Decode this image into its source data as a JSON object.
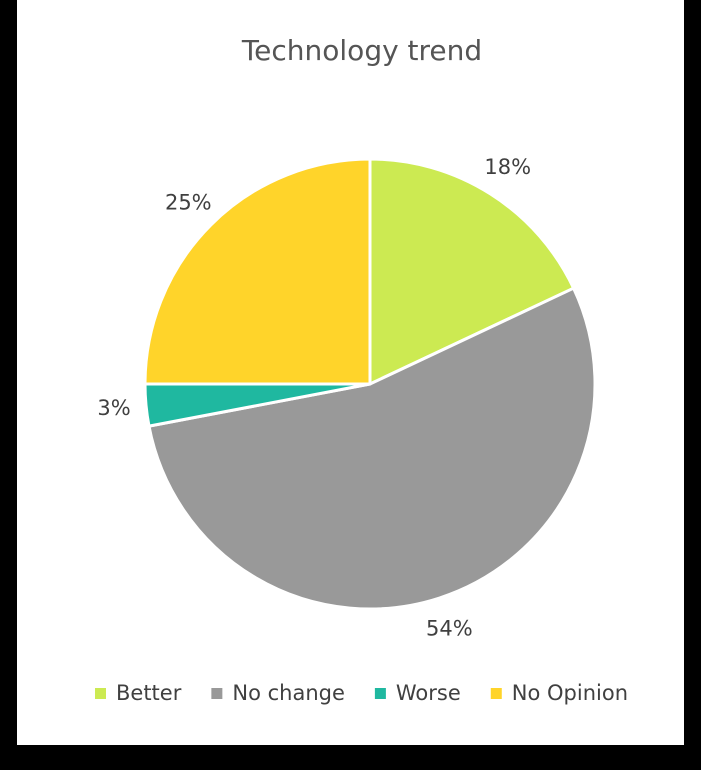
{
  "chart_data": {
    "type": "pie",
    "title": "Technology trend",
    "categories": [
      "Better",
      "No change",
      "Worse",
      "No Opinion"
    ],
    "values": [
      18,
      54,
      3,
      25
    ],
    "labels": [
      "18%",
      "54%",
      "3%",
      "25%"
    ],
    "colors": [
      "#CCEA52",
      "#999999",
      "#1FB8A0",
      "#FFD42A"
    ],
    "legend": "bottom"
  }
}
